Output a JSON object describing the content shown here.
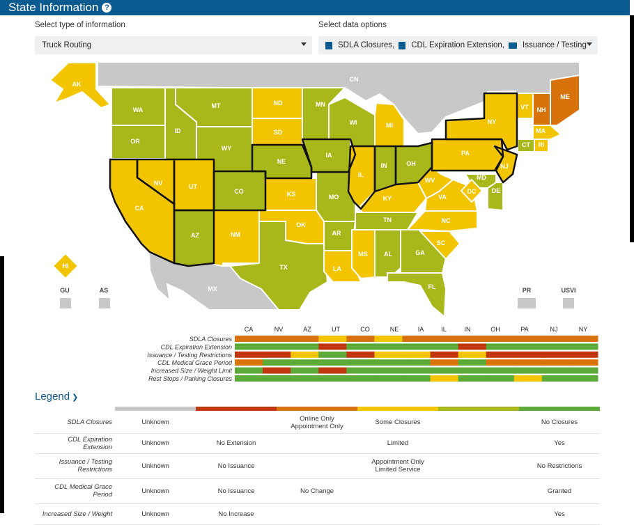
{
  "header": {
    "title": "State Information",
    "help_icon": "question-circle-icon"
  },
  "controls": {
    "type_label": "Select type of information",
    "type_value": "Truck Routing",
    "data_label": "Select data options",
    "data_chips": [
      "SDLA Closures,",
      "CDL Expiration Extension,",
      "Issuance / Testing"
    ]
  },
  "colors": {
    "unknown": "#c8c8c8",
    "red": "#c0360f",
    "orange": "#d8730c",
    "yellow": "#f2c500",
    "olive": "#a8b81a",
    "green": "#5caa3a"
  },
  "map": {
    "states": [
      {
        "id": "AK",
        "color": "yellow"
      },
      {
        "id": "WA",
        "color": "olive"
      },
      {
        "id": "OR",
        "color": "olive"
      },
      {
        "id": "CA",
        "color": "yellow"
      },
      {
        "id": "NV",
        "color": "yellow"
      },
      {
        "id": "ID",
        "color": "olive"
      },
      {
        "id": "MT",
        "color": "olive"
      },
      {
        "id": "WY",
        "color": "olive"
      },
      {
        "id": "UT",
        "color": "yellow"
      },
      {
        "id": "CO",
        "color": "olive"
      },
      {
        "id": "AZ",
        "color": "olive"
      },
      {
        "id": "NM",
        "color": "yellow"
      },
      {
        "id": "ND",
        "color": "yellow"
      },
      {
        "id": "SD",
        "color": "yellow"
      },
      {
        "id": "NE",
        "color": "olive"
      },
      {
        "id": "KS",
        "color": "yellow"
      },
      {
        "id": "OK",
        "color": "yellow"
      },
      {
        "id": "TX",
        "color": "olive"
      },
      {
        "id": "MN",
        "color": "olive"
      },
      {
        "id": "IA",
        "color": "olive"
      },
      {
        "id": "MO",
        "color": "olive"
      },
      {
        "id": "AR",
        "color": "olive"
      },
      {
        "id": "LA",
        "color": "yellow"
      },
      {
        "id": "WI",
        "color": "olive"
      },
      {
        "id": "IL",
        "color": "yellow"
      },
      {
        "id": "MI",
        "color": "yellow"
      },
      {
        "id": "IN",
        "color": "olive"
      },
      {
        "id": "OH",
        "color": "olive"
      },
      {
        "id": "KY",
        "color": "yellow"
      },
      {
        "id": "TN",
        "color": "olive"
      },
      {
        "id": "MS",
        "color": "yellow"
      },
      {
        "id": "AL",
        "color": "olive"
      },
      {
        "id": "GA",
        "color": "olive"
      },
      {
        "id": "FL",
        "color": "olive"
      },
      {
        "id": "SC",
        "color": "yellow"
      },
      {
        "id": "NC",
        "color": "yellow"
      },
      {
        "id": "VA",
        "color": "yellow"
      },
      {
        "id": "WV",
        "color": "yellow"
      },
      {
        "id": "PA",
        "color": "yellow"
      },
      {
        "id": "NY",
        "color": "yellow"
      },
      {
        "id": "VT",
        "color": "yellow"
      },
      {
        "id": "NH",
        "color": "orange"
      },
      {
        "id": "ME",
        "color": "orange"
      },
      {
        "id": "MA",
        "color": "yellow"
      },
      {
        "id": "CT",
        "color": "olive"
      },
      {
        "id": "RI",
        "color": "yellow"
      },
      {
        "id": "NJ",
        "color": "yellow"
      },
      {
        "id": "DE",
        "color": "olive"
      },
      {
        "id": "MD",
        "color": "olive"
      },
      {
        "id": "DC",
        "color": "yellow"
      },
      {
        "id": "HI",
        "color": "yellow"
      }
    ],
    "regions": [
      "CN",
      "MX"
    ],
    "territories": [
      "GU",
      "AS",
      "PR",
      "USVI"
    ]
  },
  "timeline": {
    "columns": [
      "CA",
      "NV",
      "AZ",
      "UT",
      "CO",
      "NE",
      "IA",
      "IL",
      "IN",
      "OH",
      "PA",
      "NJ",
      "NY"
    ],
    "rows": [
      {
        "label": "SDLA Closures",
        "cells": [
          "orange",
          "orange",
          "orange",
          "yellow",
          "orange",
          "yellow",
          "orange",
          "orange",
          "orange",
          "orange",
          "orange",
          "orange",
          "orange"
        ]
      },
      {
        "label": "CDL Expiration Extension",
        "cells": [
          "green",
          "green",
          "green",
          "red",
          "green",
          "green",
          "green",
          "green",
          "red",
          "green",
          "green",
          "green",
          "green"
        ]
      },
      {
        "label": "Issuance / Testing Restrictions",
        "cells": [
          "red",
          "red",
          "yellow",
          "green",
          "red",
          "yellow",
          "yellow",
          "red",
          "yellow",
          "red",
          "red",
          "red",
          "red"
        ]
      },
      {
        "label": "CDL Medical Grace Period",
        "cells": [
          "orange",
          "green",
          "green",
          "green",
          "green",
          "green",
          "green",
          "orange",
          "green",
          "orange",
          "orange",
          "orange",
          "orange"
        ]
      },
      {
        "label": "Increased Size / Weight Limit",
        "cells": [
          "green",
          "red",
          "green",
          "red",
          "green",
          "green",
          "green",
          "green",
          "green",
          "green",
          "green",
          "green",
          "green"
        ]
      },
      {
        "label": "Rest Stops / Parking Closures",
        "cells": [
          "green",
          "green",
          "green",
          "green",
          "green",
          "green",
          "green",
          "yellow",
          "green",
          "green",
          "yellow",
          "green",
          "green"
        ]
      }
    ]
  },
  "legend": {
    "title": "Legend",
    "chevron_icon": "chevron-down-icon",
    "rows": [
      {
        "label": "SDLA Closures",
        "cells": [
          "Unknown",
          "",
          "Online Only\nAppointment Only",
          "Some Closures",
          "",
          "No Closures"
        ]
      },
      {
        "label": "CDL Expiration Extension",
        "cells": [
          "Unknown",
          "No Extension",
          "",
          "Limited",
          "",
          "Yes"
        ]
      },
      {
        "label": "Issuance / Testing Restrictions",
        "cells": [
          "Unknown",
          "No Issuance",
          "",
          "Appointment Only\nLimited Service",
          "",
          "No Restrictions"
        ]
      },
      {
        "label": "CDL Medical Grace Period",
        "cells": [
          "Unknown",
          "No Issuance",
          "No Change",
          "",
          "",
          "Granted"
        ]
      },
      {
        "label": "Increased Size / Weight",
        "cells": [
          "Unknown",
          "No Increase",
          "",
          "",
          "",
          "Yes"
        ]
      }
    ]
  }
}
